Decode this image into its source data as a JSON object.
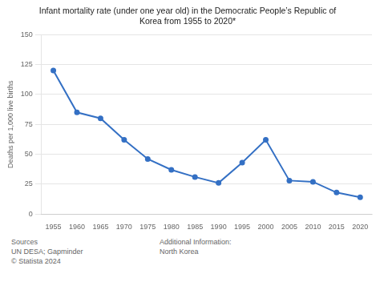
{
  "chart_data": {
    "type": "line",
    "title": "Infant mortality rate (under one year old) in the Democratic People’s Republic of\nKorea from 1955 to 2020*",
    "y_label": "Deaths per 1,000 live births",
    "categories": [
      "1955",
      "1960",
      "1965",
      "1970",
      "1975",
      "1980",
      "1985",
      "1990",
      "1995",
      "2000",
      "2005",
      "2010",
      "2015",
      "2020"
    ],
    "values": [
      120,
      85,
      80,
      62,
      46,
      37,
      31,
      26,
      43,
      62,
      28,
      27,
      18,
      14
    ],
    "color": "#3470c4",
    "marker": "circle",
    "ylim": [
      0,
      150
    ],
    "yticks": [
      0,
      25,
      50,
      75,
      100,
      125,
      150
    ],
    "grid": true,
    "annotations": [
      "Sources\nUN DESA; Gapminder\n© Statista 2024",
      "Additional Information:\nNorth Korea"
    ]
  }
}
